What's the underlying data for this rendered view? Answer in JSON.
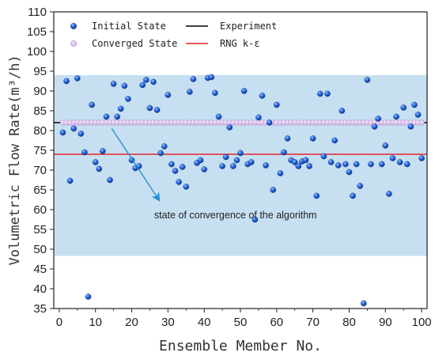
{
  "chart_data": {
    "type": "scatter",
    "xlabel": "Ensemble Member No.",
    "ylabel": "Volumetric Flow Rate(m³/h)",
    "xlim": [
      -1.5,
      101.5
    ],
    "ylim": [
      35,
      110
    ],
    "xticks": [
      0,
      10,
      20,
      30,
      40,
      50,
      60,
      70,
      80,
      90,
      100
    ],
    "yticks": [
      35,
      40,
      45,
      50,
      55,
      60,
      65,
      70,
      75,
      80,
      85,
      90,
      95,
      100,
      105,
      110
    ],
    "xtick_labels": [
      "0",
      "10",
      "20",
      "30",
      "40",
      "50",
      "60",
      "70",
      "80",
      "90",
      "100"
    ],
    "ytick_labels": [
      "35",
      "40",
      "45",
      "50",
      "55",
      "60",
      "65",
      "70",
      "75",
      "80",
      "85",
      "90",
      "95",
      "100",
      "105",
      "110"
    ],
    "band": {
      "y0": 48.3,
      "y1": 94.0,
      "color": "#c6e0f2"
    },
    "grid": false,
    "legend_position": "top",
    "legend": {
      "initial": "Initial State",
      "converged": "Converged State",
      "experiment": "Experiment",
      "rng": "RNG k-ε"
    },
    "annotation": {
      "text": "state of convergence of the algorithm",
      "arrow_from": [
        14.5,
        80.5
      ],
      "arrow_to": [
        27.5,
        62.5
      ]
    },
    "lines": [
      {
        "name": "Experiment",
        "y": 82.0,
        "color": "#000000"
      },
      {
        "name": "RNG k-ε",
        "y": 74.0,
        "color": "#e8222a"
      }
    ],
    "converged_state": {
      "y": 82.0,
      "x_start": 1,
      "x_end": 100,
      "color": "#c9a8de"
    },
    "series": [
      {
        "name": "Initial State",
        "color": "#1f5fd0",
        "x": [
          1,
          2,
          3,
          4,
          5,
          6,
          7,
          8,
          9,
          10,
          11,
          12,
          13,
          14,
          15,
          16,
          17,
          18,
          19,
          20,
          21,
          22,
          23,
          24,
          25,
          26,
          27,
          28,
          29,
          30,
          31,
          32,
          33,
          34,
          35,
          36,
          37,
          38,
          39,
          40,
          41,
          42,
          43,
          44,
          45,
          46,
          47,
          48,
          49,
          50,
          51,
          52,
          53,
          54,
          55,
          56,
          57,
          58,
          59,
          60,
          61,
          62,
          63,
          64,
          65,
          66,
          67,
          68,
          69,
          70,
          71,
          72,
          73,
          74,
          75,
          76,
          77,
          78,
          79,
          80,
          81,
          82,
          83,
          84,
          85,
          86,
          87,
          88,
          89,
          90,
          91,
          92,
          93,
          94,
          95,
          96,
          97,
          98,
          99,
          100
        ],
        "y": [
          79.5,
          92.5,
          67.3,
          80.5,
          93.2,
          79.2,
          74.5,
          38.0,
          86.5,
          72.0,
          70.3,
          74.8,
          83.5,
          67.5,
          91.8,
          83.5,
          85.5,
          91.3,
          88.0,
          72.5,
          70.5,
          71.0,
          91.5,
          92.8,
          85.7,
          92.3,
          85.2,
          74.3,
          76.0,
          89.0,
          71.5,
          69.8,
          67.0,
          70.8,
          65.8,
          89.8,
          93.0,
          71.8,
          72.5,
          70.2,
          93.3,
          93.5,
          89.5,
          83.5,
          71.0,
          73.3,
          80.8,
          71.0,
          72.5,
          74.3,
          90.0,
          71.5,
          72.0,
          57.5,
          83.3,
          88.8,
          71.2,
          82.0,
          65.0,
          86.5,
          69.2,
          74.5,
          78.0,
          72.5,
          72.0,
          71.0,
          72.2,
          72.5,
          71.0,
          78.0,
          63.5,
          89.3,
          73.5,
          89.3,
          72.0,
          77.5,
          71.2,
          85.0,
          71.5,
          69.5,
          63.5,
          71.5,
          66.0,
          36.3,
          92.8,
          71.5,
          81.0,
          83.0,
          71.5,
          76.2,
          64.0,
          73.0,
          83.5,
          72.0,
          85.8,
          71.5,
          81.0,
          86.5,
          84.0,
          73.0
        ]
      }
    ]
  }
}
